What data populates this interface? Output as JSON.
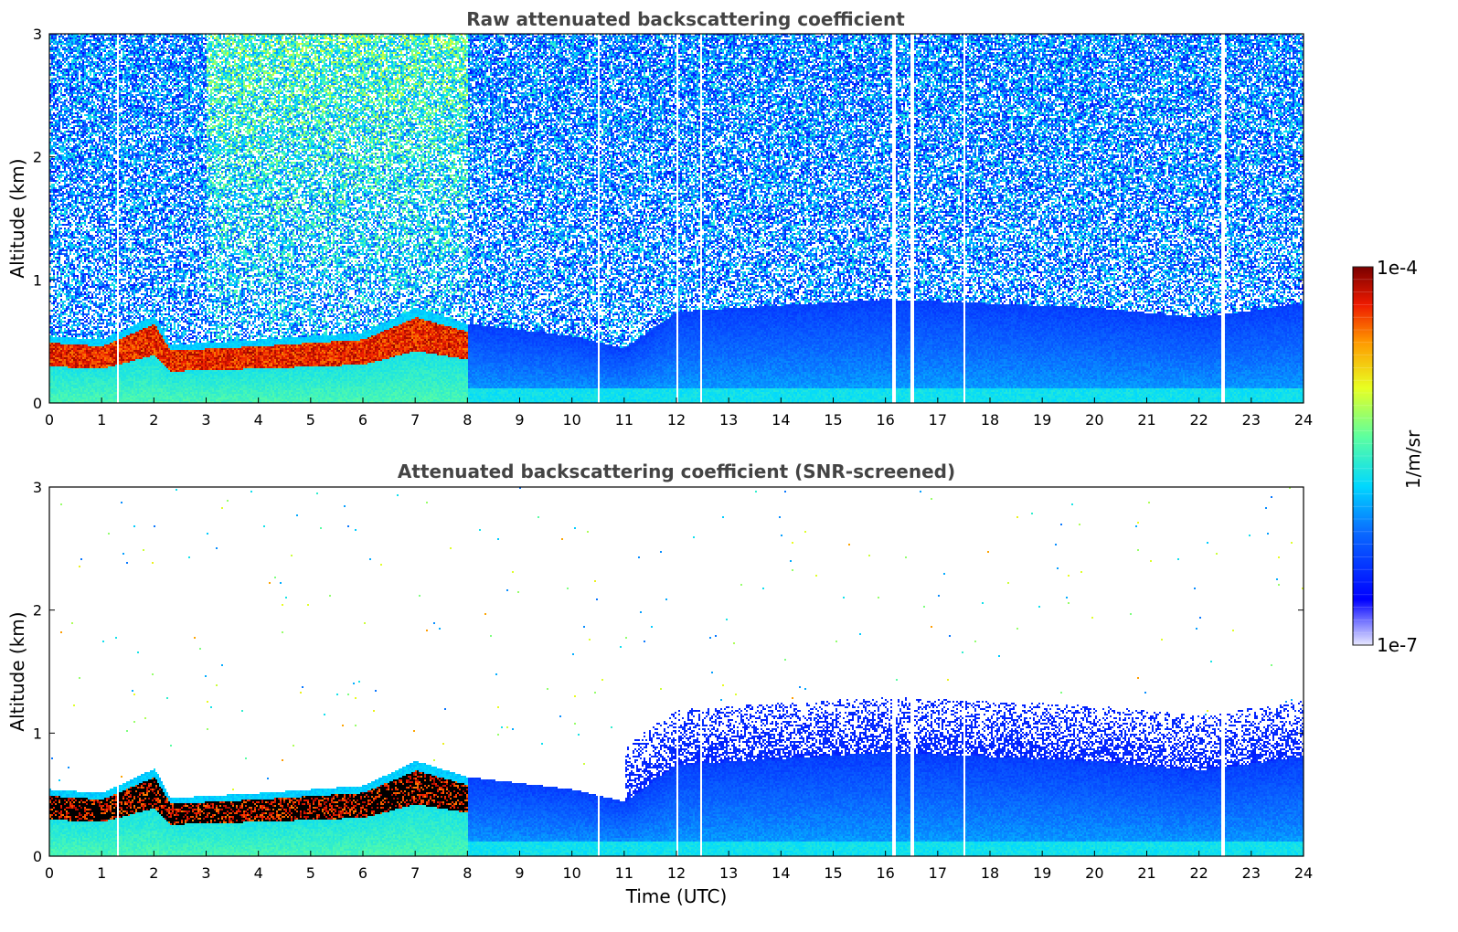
{
  "chart_data": [
    {
      "type": "heatmap",
      "title": "Raw attenuated backscattering coefficient",
      "xlabel": "",
      "ylabel": "Altitude (km)",
      "xlim": [
        0,
        24
      ],
      "ylim": [
        0,
        3
      ],
      "xticks": [
        "0",
        "1",
        "2",
        "3",
        "4",
        "5",
        "6",
        "7",
        "8",
        "9",
        "10",
        "11",
        "12",
        "13",
        "14",
        "15",
        "16",
        "17",
        "18",
        "19",
        "20",
        "21",
        "22",
        "23",
        "24"
      ],
      "yticks": [
        "0",
        "1",
        "2",
        "3"
      ],
      "gap_times": [
        1.3,
        10.5,
        12.0,
        12.45,
        16.15,
        16.5,
        17.5,
        22.45
      ],
      "boundary_layer_top": [
        {
          "t": 0,
          "h": 0.55
        },
        {
          "t": 1,
          "h": 0.52
        },
        {
          "t": 2,
          "h": 0.72
        },
        {
          "t": 2.3,
          "h": 0.48
        },
        {
          "t": 4,
          "h": 0.52
        },
        {
          "t": 6,
          "h": 0.58
        },
        {
          "t": 7,
          "h": 0.78
        },
        {
          "t": 8,
          "h": 0.65
        },
        {
          "t": 10,
          "h": 0.55
        },
        {
          "t": 11,
          "h": 0.45
        },
        {
          "t": 12,
          "h": 0.75
        },
        {
          "t": 16,
          "h": 0.85
        },
        {
          "t": 20,
          "h": 0.78
        },
        {
          "t": 22,
          "h": 0.7
        },
        {
          "t": 24,
          "h": 0.82
        }
      ]
    },
    {
      "type": "heatmap",
      "title": "Attenuated backscattering coefficient (SNR-screened)",
      "xlabel": "Time (UTC)",
      "ylabel": "Altitude (km)",
      "xlim": [
        0,
        24
      ],
      "ylim": [
        0,
        3
      ],
      "xticks": [
        "0",
        "1",
        "2",
        "3",
        "4",
        "5",
        "6",
        "7",
        "8",
        "9",
        "10",
        "11",
        "12",
        "13",
        "14",
        "15",
        "16",
        "17",
        "18",
        "19",
        "20",
        "21",
        "22",
        "23",
        "24"
      ],
      "yticks": [
        "0",
        "1",
        "2",
        "3"
      ],
      "gap_times": [
        1.3,
        10.5,
        12.0,
        12.45,
        16.15,
        16.5,
        17.5,
        22.45
      ]
    }
  ],
  "colorbar": {
    "min_label": "1e-7",
    "max_label": "1e-4",
    "label": "1/m/sr",
    "scale": "log",
    "range": [
      1e-07,
      0.0001
    ],
    "colormap": "jet"
  }
}
